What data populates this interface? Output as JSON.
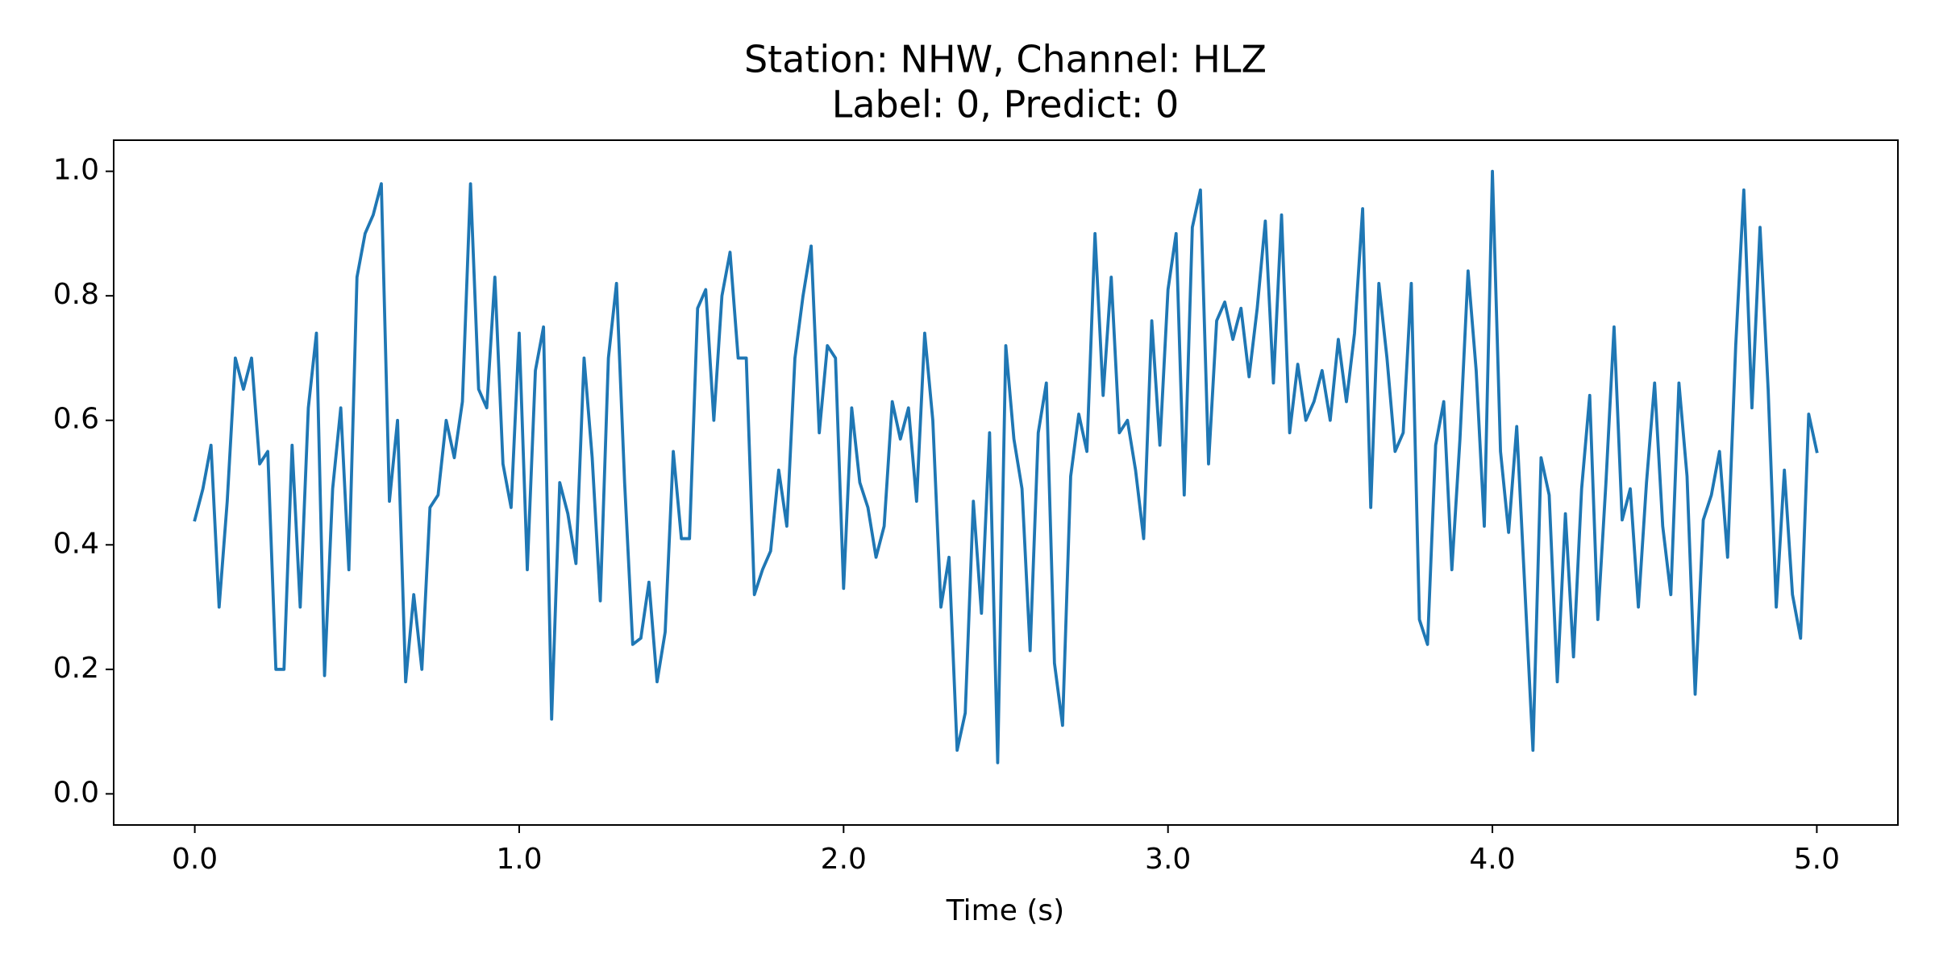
{
  "chart_data": {
    "type": "line",
    "title": [
      "Station: NHW, Channel: HLZ",
      "Label: 0, Predict: 0"
    ],
    "xlabel": "Time (s)",
    "xlim": [
      -0.25,
      5.25
    ],
    "ylim": [
      -0.05,
      1.05
    ],
    "xticks": [
      {
        "value": 0,
        "label": "0.0"
      },
      {
        "value": 1,
        "label": "1.0"
      },
      {
        "value": 2,
        "label": "2.0"
      },
      {
        "value": 3,
        "label": "3.0"
      },
      {
        "value": 4,
        "label": "4.0"
      },
      {
        "value": 5,
        "label": "5.0"
      }
    ],
    "yticks": [
      {
        "value": 0,
        "label": "0.0"
      },
      {
        "value": 0.2,
        "label": "0.2"
      },
      {
        "value": 0.4,
        "label": "0.4"
      },
      {
        "value": 0.6,
        "label": "0.6"
      },
      {
        "value": 0.8,
        "label": "0.8"
      },
      {
        "value": 1,
        "label": "1.0"
      }
    ],
    "grid": false,
    "x": [
      0,
      0.025,
      0.05,
      0.075,
      0.1,
      0.125,
      0.15,
      0.175,
      0.2,
      0.225,
      0.25,
      0.275,
      0.3,
      0.325,
      0.35,
      0.375,
      0.4,
      0.425,
      0.45,
      0.475,
      0.5,
      0.525,
      0.55,
      0.575,
      0.6,
      0.625,
      0.65,
      0.675,
      0.7,
      0.725,
      0.75,
      0.775,
      0.8,
      0.825,
      0.85,
      0.875,
      0.9,
      0.925,
      0.95,
      0.975,
      1,
      1.025,
      1.05,
      1.075,
      1.1,
      1.125,
      1.15,
      1.175,
      1.2,
      1.225,
      1.25,
      1.275,
      1.3,
      1.325,
      1.35,
      1.375,
      1.4,
      1.425,
      1.45,
      1.475,
      1.5,
      1.525,
      1.55,
      1.575,
      1.6,
      1.625,
      1.65,
      1.675,
      1.7,
      1.725,
      1.75,
      1.775,
      1.8,
      1.825,
      1.85,
      1.875,
      1.9,
      1.925,
      1.95,
      1.975,
      2,
      2.025,
      2.05,
      2.075,
      2.1,
      2.125,
      2.15,
      2.175,
      2.2,
      2.225,
      2.25,
      2.275,
      2.3,
      2.325,
      2.35,
      2.375,
      2.4,
      2.425,
      2.45,
      2.475,
      2.5,
      2.525,
      2.55,
      2.575,
      2.6,
      2.625,
      2.65,
      2.675,
      2.7,
      2.725,
      2.75,
      2.775,
      2.8,
      2.825,
      2.85,
      2.875,
      2.9,
      2.925,
      2.95,
      2.975,
      3,
      3.025,
      3.05,
      3.075,
      3.1,
      3.125,
      3.15,
      3.175,
      3.2,
      3.225,
      3.25,
      3.275,
      3.3,
      3.325,
      3.35,
      3.375,
      3.4,
      3.425,
      3.45,
      3.475,
      3.5,
      3.525,
      3.55,
      3.575,
      3.6,
      3.625,
      3.65,
      3.675,
      3.7,
      3.725,
      3.75,
      3.775,
      3.8,
      3.825,
      3.85,
      3.875,
      3.9,
      3.925,
      3.95,
      3.975,
      4,
      4.025,
      4.05,
      4.075,
      4.1,
      4.125,
      4.15,
      4.175,
      4.2,
      4.225,
      4.25,
      4.275,
      4.3,
      4.325,
      4.35,
      4.375,
      4.4,
      4.425,
      4.45,
      4.475,
      4.5,
      4.525,
      4.55,
      4.575,
      4.6,
      4.625,
      4.65,
      4.675,
      4.7,
      4.725,
      4.75,
      4.775,
      4.8,
      4.825,
      4.85,
      4.875,
      4.9,
      4.925,
      4.95,
      4.975,
      5
    ],
    "series": [
      {
        "color": "#1f77b4",
        "values": [
          0.44,
          0.49,
          0.56,
          0.3,
          0.47,
          0.7,
          0.65,
          0.7,
          0.53,
          0.55,
          0.2,
          0.2,
          0.56,
          0.3,
          0.62,
          0.74,
          0.19,
          0.49,
          0.62,
          0.36,
          0.83,
          0.9,
          0.93,
          0.98,
          0.47,
          0.6,
          0.18,
          0.32,
          0.2,
          0.46,
          0.48,
          0.6,
          0.54,
          0.63,
          0.98,
          0.65,
          0.62,
          0.83,
          0.53,
          0.46,
          0.74,
          0.36,
          0.68,
          0.75,
          0.12,
          0.5,
          0.45,
          0.37,
          0.7,
          0.54,
          0.31,
          0.7,
          0.82,
          0.5,
          0.24,
          0.25,
          0.34,
          0.18,
          0.26,
          0.55,
          0.41,
          0.41,
          0.78,
          0.81,
          0.6,
          0.8,
          0.87,
          0.7,
          0.7,
          0.32,
          0.36,
          0.39,
          0.52,
          0.43,
          0.7,
          0.8,
          0.88,
          0.58,
          0.72,
          0.7,
          0.33,
          0.62,
          0.5,
          0.46,
          0.38,
          0.43,
          0.63,
          0.57,
          0.62,
          0.47,
          0.74,
          0.6,
          0.3,
          0.38,
          0.07,
          0.13,
          0.47,
          0.29,
          0.58,
          0.05,
          0.72,
          0.57,
          0.49,
          0.23,
          0.58,
          0.66,
          0.21,
          0.11,
          0.51,
          0.61,
          0.55,
          0.9,
          0.64,
          0.83,
          0.58,
          0.6,
          0.52,
          0.41,
          0.76,
          0.56,
          0.81,
          0.9,
          0.48,
          0.91,
          0.97,
          0.53,
          0.76,
          0.79,
          0.73,
          0.78,
          0.67,
          0.78,
          0.92,
          0.66,
          0.93,
          0.58,
          0.69,
          0.6,
          0.63,
          0.68,
          0.6,
          0.73,
          0.63,
          0.74,
          0.94,
          0.46,
          0.82,
          0.7,
          0.55,
          0.58,
          0.82,
          0.28,
          0.24,
          0.56,
          0.63,
          0.36,
          0.57,
          0.84,
          0.68,
          0.43,
          1.0,
          0.55,
          0.42,
          0.59,
          0.33,
          0.07,
          0.54,
          0.48,
          0.18,
          0.45,
          0.22,
          0.49,
          0.64,
          0.28,
          0.5,
          0.75,
          0.44,
          0.49,
          0.3,
          0.5,
          0.66,
          0.43,
          0.32,
          0.66,
          0.51,
          0.16,
          0.44,
          0.48,
          0.55,
          0.38,
          0.72,
          0.97,
          0.62,
          0.91,
          0.65,
          0.3,
          0.52,
          0.32,
          0.25,
          0.61,
          0.55
        ]
      }
    ]
  }
}
